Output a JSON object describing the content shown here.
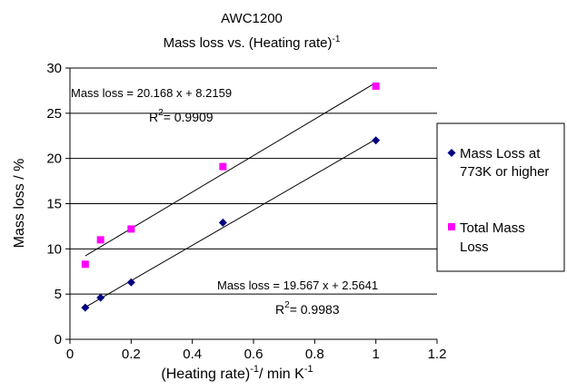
{
  "chart_data": {
    "type": "scatter",
    "title_line1": "AWC1200",
    "title_line2": "Mass loss vs. (Heating rate)",
    "title_sup": "-1",
    "xlabel_main": "(Heating rate)",
    "xlabel_sup1": "-1",
    "xlabel_mid": "/ min K",
    "xlabel_sup2": "-1",
    "ylabel": "Mass loss / %",
    "xlim": [
      0,
      1.2
    ],
    "ylim": [
      0,
      30
    ],
    "x_ticks": [
      0,
      0.2,
      0.4,
      0.6,
      0.8,
      1.0,
      1.2
    ],
    "x_tick_labels": [
      "0",
      "0.2",
      "0.4",
      "0.6",
      "0.8",
      "1",
      "1.2"
    ],
    "y_ticks": [
      0,
      5,
      10,
      15,
      20,
      25,
      30
    ],
    "y_tick_labels": [
      "0",
      "5",
      "10",
      "15",
      "20",
      "25",
      "30"
    ],
    "grid": "horizontal",
    "legend_position": "right",
    "series": [
      {
        "name": "Mass Loss at 773K or higher",
        "legend_line1": "Mass Loss at",
        "legend_line2": "773K or higher",
        "marker": "diamond",
        "color": "#000080",
        "x": [
          0.05,
          0.1,
          0.2,
          0.5,
          1.0
        ],
        "y": [
          3.5,
          4.6,
          6.3,
          12.9,
          22.0
        ],
        "trendline": {
          "slope": 19.567,
          "intercept": 2.5641,
          "x_range": [
            0.05,
            1.0
          ]
        },
        "equation_label": "Mass loss = 19.567 x + 2.5641",
        "r2_prefix": "R",
        "r2_sup": "2",
        "r2_value": "= 0.9983"
      },
      {
        "name": "Total Mass Loss",
        "legend_line1": "Total Mass",
        "legend_line2": "Loss",
        "marker": "square",
        "color": "#ff00ff",
        "x": [
          0.05,
          0.1,
          0.2,
          0.5,
          1.0
        ],
        "y": [
          8.3,
          11.0,
          12.2,
          19.1,
          28.0
        ],
        "trendline": {
          "slope": 20.168,
          "intercept": 8.2159,
          "x_range": [
            0.05,
            1.0
          ]
        },
        "equation_label": "Mass loss = 20.168 x + 8.2159",
        "r2_prefix": "R",
        "r2_sup": "2",
        "r2_value": "= 0.9909"
      }
    ]
  }
}
